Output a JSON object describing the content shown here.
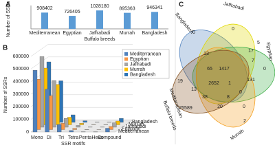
{
  "chart_data": [
    {
      "type": "bar",
      "label": "A",
      "categories": [
        "Mediterranean",
        "Egyptian",
        "Jaffrabadi",
        "Murrah",
        "Bangladesh"
      ],
      "values": [
        908402,
        726405,
        1028180,
        895363,
        946341
      ],
      "color": "#5b9bd5",
      "ylim": [
        0,
        1150000
      ],
      "ylabel": "Number of SSRs",
      "xlabel": "Buffalo breeds"
    },
    {
      "type": "bar3d",
      "label": "B",
      "categories": [
        "Mono",
        "Di",
        "Tri",
        "Tetra",
        "Penta",
        "Hexa",
        "Compound"
      ],
      "series": [
        {
          "name": "Mediterranean",
          "color": "#4f81bd",
          "values": [
            490000,
            340000,
            60000,
            12000,
            2000,
            1000,
            30000
          ]
        },
        {
          "name": "Egyptian",
          "color": "#f79646",
          "values": [
            400000,
            270000,
            50000,
            10000,
            1500,
            800,
            25000
          ]
        },
        {
          "name": "Jaffrabadi",
          "color": "#a5a5a5",
          "values": [
            560000,
            370000,
            70000,
            14000,
            2000,
            1000,
            35000
          ]
        },
        {
          "name": "Murrah",
          "color": "#ffc000",
          "values": [
            450000,
            320000,
            60000,
            12000,
            2000,
            1000,
            30000
          ]
        },
        {
          "name": "Bangladesh",
          "color": "#2e75b6",
          "values": [
            480000,
            330000,
            60000,
            13000,
            2000,
            1000,
            32000
          ]
        }
      ],
      "ylim": [
        0,
        600000
      ],
      "yticks": [
        0,
        100000,
        200000,
        300000,
        400000,
        500000,
        600000
      ],
      "grid": true,
      "legend": "right",
      "ylabel": "Number of SSRs",
      "xlabel": "SSR motifs"
    },
    {
      "type": "venn",
      "label": "C",
      "sets": [
        {
          "name": "Bangladesh",
          "color": "#4f81bd"
        },
        {
          "name": "Jaffrabadi",
          "color": "#e0d800"
        },
        {
          "name": "Egyptian",
          "color": "#3fae49"
        },
        {
          "name": "Murrah",
          "color": "#f4a020"
        },
        {
          "name": "Mediterranean",
          "color": "#8b5a2b"
        }
      ],
      "regions": [
        0,
        0,
        5,
        13,
        17,
        7,
        65,
        1417,
        0,
        19,
        2652,
        1,
        131,
        13,
        38,
        8,
        0,
        25589,
        20,
        0,
        2
      ],
      "side_label": "Buffalo breeds"
    }
  ]
}
